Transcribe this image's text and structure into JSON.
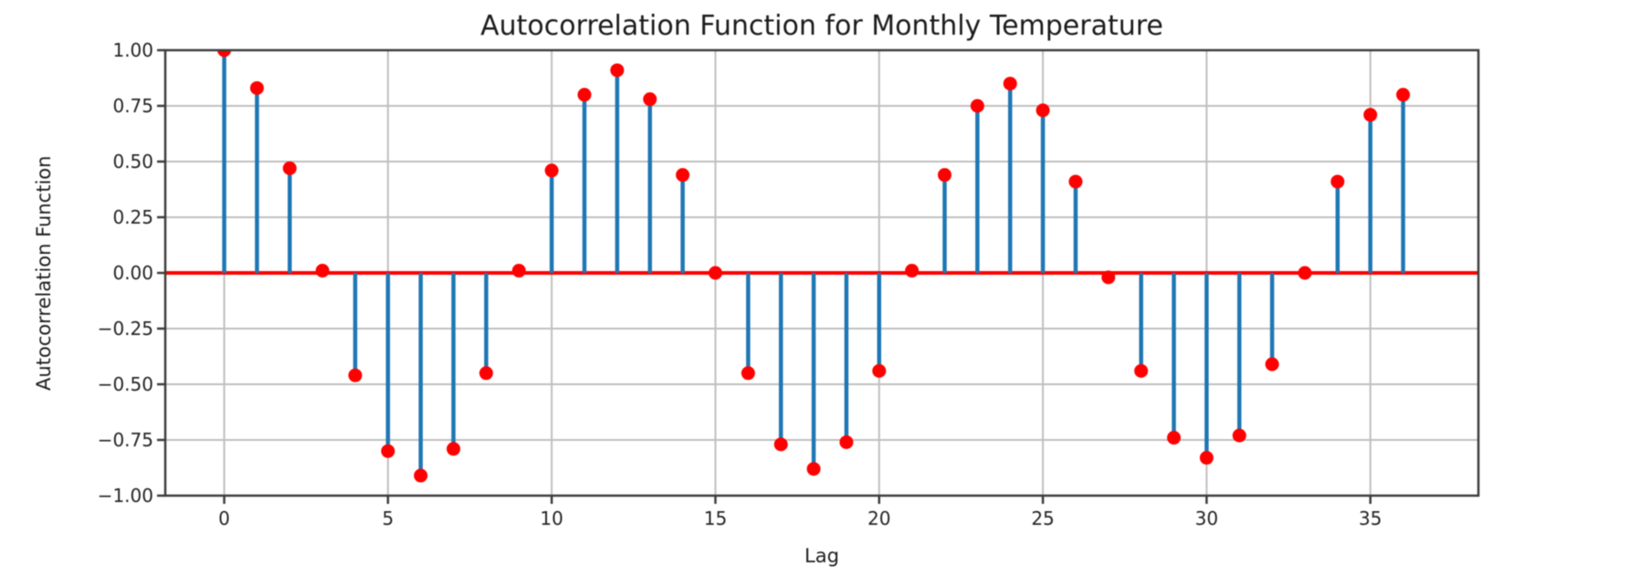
{
  "figure": {
    "title": "Autocorrelation Function for Monthly Temperature",
    "xlabel": "Lag",
    "ylabel": "Autocorrelation Function"
  },
  "chart_data": {
    "type": "stem",
    "title": "Autocorrelation Function for Monthly Temperature",
    "xlabel": "Lag",
    "ylabel": "Autocorrelation Function",
    "x": [
      0,
      1,
      2,
      3,
      4,
      5,
      6,
      7,
      8,
      9,
      10,
      11,
      12,
      13,
      14,
      15,
      16,
      17,
      18,
      19,
      20,
      21,
      22,
      23,
      24,
      25,
      26,
      27,
      28,
      29,
      30,
      31,
      32,
      33,
      34,
      35,
      36
    ],
    "values": [
      1.0,
      0.83,
      0.47,
      0.01,
      -0.46,
      -0.8,
      -0.91,
      -0.79,
      -0.45,
      0.01,
      0.46,
      0.8,
      0.91,
      0.78,
      0.44,
      0.0,
      -0.45,
      -0.77,
      -0.88,
      -0.76,
      -0.44,
      0.01,
      0.44,
      0.75,
      0.85,
      0.73,
      0.41,
      -0.02,
      -0.44,
      -0.74,
      -0.83,
      -0.73,
      -0.41,
      0.0,
      0.41,
      0.71,
      0.8
    ],
    "baseline": 0,
    "xlim": [
      -1.8,
      38.3
    ],
    "ylim": [
      -1.0,
      1.0
    ],
    "grid": true,
    "legend": null,
    "xticks": [
      0,
      5,
      10,
      15,
      20,
      25,
      30,
      35
    ],
    "xtick_labels": [
      "0",
      "5",
      "10",
      "15",
      "20",
      "25",
      "30",
      "35"
    ],
    "yticks": [
      1.0,
      0.75,
      0.5,
      0.25,
      0.0,
      -0.25,
      -0.5,
      -0.75,
      -1.0
    ],
    "ytick_labels": [
      "1.00",
      "0.75",
      "0.50",
      "0.25",
      "0.00",
      "−0.25",
      "−0.50",
      "−0.75",
      "−1.00"
    ],
    "colors": {
      "stem": "#1f77b4",
      "marker": "#ff0000",
      "baseline": "#ff0000",
      "grid": "#bfbfbf",
      "spine": "#3d3d3d",
      "tick": "#3d3d3d",
      "text": "#242424",
      "background": "#ffffff"
    }
  }
}
